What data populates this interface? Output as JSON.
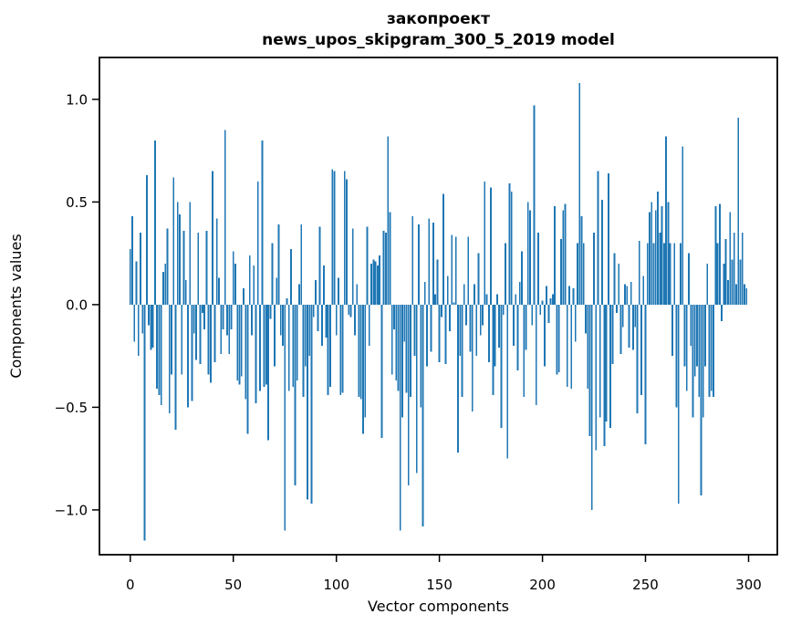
{
  "figure": {
    "title_line1": "закопроект",
    "title_line2": "news_upos_skipgram_300_5_2019 model"
  },
  "chart_data": {
    "type": "bar",
    "title": "закопроект",
    "subtitle": "news_upos_skipgram_300_5_2019 model",
    "xlabel": "Vector components",
    "ylabel": "Components values",
    "bar_color": "#1f77b4",
    "spine_color": "#000000",
    "grid": false,
    "legend": null,
    "n_bars": 300,
    "xlim": [
      -14.95,
      313.95
    ],
    "ylim": [
      -1.218,
      1.204
    ],
    "x_ticks": [
      {
        "value": 0,
        "label": "0"
      },
      {
        "value": 50,
        "label": "50"
      },
      {
        "value": 100,
        "label": "100"
      },
      {
        "value": 150,
        "label": "150"
      },
      {
        "value": 200,
        "label": "200"
      },
      {
        "value": 250,
        "label": "250"
      },
      {
        "value": 300,
        "label": "300"
      }
    ],
    "y_ticks": [
      {
        "value": 1.0,
        "label": "1.0"
      },
      {
        "value": 0.5,
        "label": "0.5"
      },
      {
        "value": 0.0,
        "label": "0.0"
      },
      {
        "value": -0.5,
        "label": "−0.5"
      },
      {
        "value": -1.0,
        "label": "−1.0"
      }
    ],
    "values": [
      0.27,
      0.43,
      -0.18,
      0.21,
      -0.25,
      0.35,
      -0.14,
      -1.15,
      0.63,
      -0.1,
      -0.22,
      -0.21,
      0.8,
      -0.41,
      -0.44,
      -0.49,
      0.16,
      0.2,
      0.37,
      -0.53,
      -0.34,
      0.62,
      -0.61,
      0.5,
      0.44,
      -0.34,
      0.36,
      0.12,
      -0.5,
      0.5,
      -0.47,
      -0.14,
      -0.27,
      0.35,
      -0.29,
      -0.04,
      -0.12,
      0.36,
      -0.34,
      -0.38,
      0.65,
      -0.28,
      0.42,
      0.13,
      -0.24,
      -0.12,
      0.85,
      -0.15,
      -0.24,
      -0.12,
      0.26,
      0.2,
      -0.37,
      -0.39,
      -0.35,
      0.08,
      -0.46,
      -0.63,
      0.24,
      -0.15,
      0.19,
      -0.48,
      0.6,
      -0.42,
      0.8,
      -0.4,
      -0.39,
      -0.66,
      -0.07,
      0.3,
      -0.3,
      0.13,
      0.39,
      -0.15,
      -0.2,
      -1.1,
      0.03,
      -0.42,
      0.27,
      -0.4,
      -0.88,
      -0.37,
      0.1,
      0.39,
      -0.45,
      -0.3,
      -0.95,
      -0.25,
      -0.97,
      -0.06,
      0.12,
      -0.13,
      0.38,
      -0.2,
      0.19,
      -0.16,
      -0.44,
      -0.4,
      0.66,
      0.65,
      -0.15,
      0.13,
      -0.44,
      -0.43,
      0.65,
      0.61,
      -0.05,
      -0.06,
      0.37,
      -0.15,
      0.1,
      -0.45,
      -0.46,
      -0.63,
      -0.55,
      0.38,
      -0.2,
      0.2,
      0.22,
      0.21,
      0.19,
      0.24,
      -0.65,
      0.36,
      0.35,
      0.82,
      0.45,
      -0.34,
      -0.12,
      -0.37,
      -0.42,
      -1.1,
      -0.55,
      -0.18,
      -0.43,
      -0.88,
      -0.45,
      0.43,
      -0.25,
      -0.82,
      0.39,
      -0.5,
      -1.08,
      0.11,
      -0.3,
      0.42,
      -0.23,
      0.4,
      0.05,
      0.22,
      -0.28,
      -0.06,
      0.54,
      -0.29,
      0.14,
      -0.13,
      0.34,
      0.01,
      0.33,
      -0.72,
      -0.25,
      -0.45,
      0.1,
      -0.1,
      0.33,
      -0.23,
      -0.52,
      0.1,
      -0.25,
      0.25,
      -0.15,
      -0.1,
      0.6,
      0.05,
      -0.28,
      0.57,
      -0.44,
      -0.3,
      0.05,
      -0.21,
      -0.6,
      -0.05,
      0.3,
      -0.75,
      0.59,
      0.55,
      -0.2,
      0.05,
      -0.32,
      0.11,
      0.26,
      -0.45,
      -0.22,
      0.5,
      0.46,
      -0.1,
      0.97,
      -0.49,
      0.35,
      -0.05,
      0.02,
      -0.3,
      0.09,
      -0.09,
      0.03,
      0.05,
      0.48,
      -0.34,
      -0.33,
      0.32,
      0.46,
      0.49,
      -0.4,
      0.09,
      -0.41,
      0.08,
      -0.18,
      0.3,
      1.08,
      0.43,
      0.3,
      -0.14,
      -0.41,
      -0.64,
      -1.0,
      0.35,
      -0.71,
      0.65,
      -0.55,
      0.51,
      -0.69,
      -0.57,
      0.64,
      -0.6,
      -0.29,
      0.25,
      -0.04,
      0.2,
      -0.24,
      -0.11,
      0.1,
      0.09,
      -0.21,
      0.11,
      -0.22,
      -0.11,
      -0.53,
      0.31,
      -0.44,
      0.14,
      -0.68,
      0.3,
      0.45,
      0.5,
      0.3,
      0.46,
      0.55,
      0.35,
      0.48,
      0.3,
      0.82,
      0.5,
      0.3,
      -0.25,
      0.3,
      -0.5,
      -0.97,
      0.3,
      0.77,
      -0.3,
      -0.42,
      0.25,
      -0.2,
      -0.55,
      -0.35,
      -0.3,
      -0.45,
      -0.93,
      -0.55,
      -0.3,
      0.2,
      -0.45,
      -0.42,
      -0.45,
      0.48,
      0.3,
      0.49,
      -0.08,
      0.2,
      0.32,
      0.12,
      0.45,
      0.22,
      0.35,
      0.1,
      0.91,
      0.22,
      0.35,
      0.1,
      0.08
    ]
  }
}
